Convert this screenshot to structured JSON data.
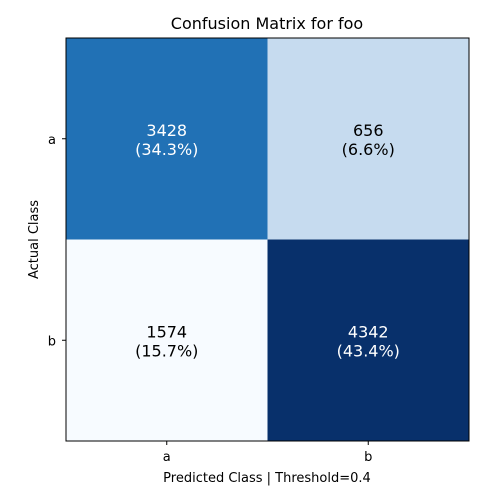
{
  "chart_data": {
    "type": "heatmap",
    "title": "Confusion Matrix for foo",
    "xlabel": "Predicted Class | Threshold=0.4",
    "ylabel": "Actual Class",
    "x_categories": [
      "a",
      "b"
    ],
    "y_categories": [
      "a",
      "b"
    ],
    "values": [
      [
        3428,
        656
      ],
      [
        1574,
        4342
      ]
    ],
    "percent_labels": [
      [
        "(34.3%)",
        "(6.6%)"
      ],
      [
        "(15.7%)",
        "(43.4%)"
      ]
    ],
    "colormap": "Blues",
    "cell_colors": [
      [
        "#2171b5",
        "#c6dbef"
      ],
      [
        "#f7fbff",
        "#08306b"
      ]
    ],
    "text_colors": [
      [
        "#ffffff",
        "#000000"
      ],
      [
        "#000000",
        "#ffffff"
      ]
    ],
    "grid": false,
    "legend": "none"
  }
}
